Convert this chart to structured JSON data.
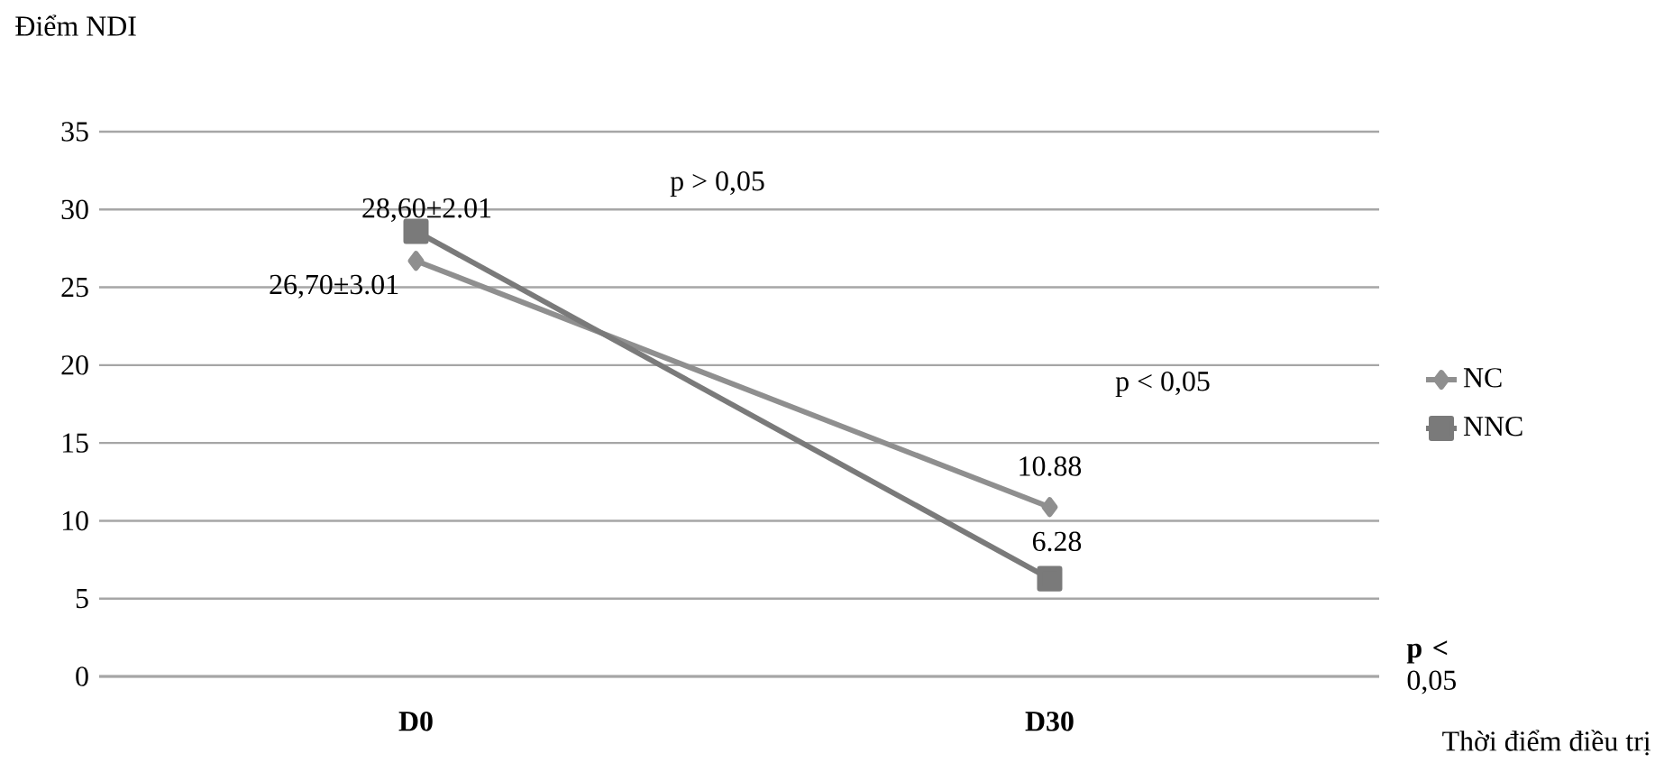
{
  "chart_data": {
    "type": "line",
    "ylabel": "Điểm NDI",
    "xlabel": "Thời điểm điều trị",
    "categories": [
      "D0",
      "D30"
    ],
    "series": [
      {
        "name": "NC",
        "color": "#8f8f8f",
        "marker": "diamond",
        "values": [
          26.7,
          10.88
        ],
        "value_labels": [
          "26,70±3.01",
          "10.88"
        ]
      },
      {
        "name": "NNC",
        "color": "#7a7a7a",
        "marker": "square",
        "values": [
          28.6,
          6.28
        ],
        "value_labels": [
          "28,60±2.01",
          "6.28"
        ]
      }
    ],
    "ylim": [
      0,
      35
    ],
    "yticks": [
      0,
      5,
      10,
      15,
      20,
      25,
      30,
      35
    ],
    "grid": "y",
    "legend": "right",
    "annotations": [
      "p > 0,05",
      "p < 0,05",
      "**p <** 0,05"
    ]
  }
}
